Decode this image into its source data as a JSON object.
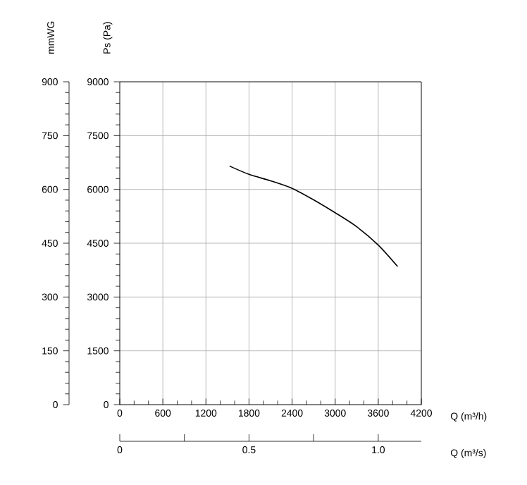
{
  "chart_data": {
    "type": "line",
    "xlabel": "Q (m³/h)",
    "ylabel": "Ps (Pa)",
    "y2label": "mmWG",
    "x2label": "Q (m³/s)",
    "series": [
      {
        "color": "#000000",
        "x": [
          1530,
          1800,
          2100,
          2400,
          2700,
          3000,
          3300,
          3600,
          3870
        ],
        "values": [
          6650,
          6420,
          6240,
          6030,
          5710,
          5350,
          4960,
          4450,
          3850
        ]
      }
    ],
    "xlim": [
      0,
      4200
    ],
    "xticks": [
      0,
      600,
      1200,
      1800,
      2400,
      3000,
      3600,
      4200
    ],
    "ylim": [
      0,
      9000
    ],
    "yticks": [
      0,
      1500,
      3000,
      4500,
      6000,
      7500,
      9000
    ],
    "y2lim": [
      0,
      900
    ],
    "y2ticks": [
      0,
      150,
      300,
      450,
      600,
      750,
      900
    ],
    "x2lim": [
      0,
      1.1667
    ],
    "x2ticks": [
      0,
      0.5,
      {
        "value": 1,
        "label": "1.0"
      }
    ],
    "grid": true,
    "marker": "none",
    "line_style": "solid"
  }
}
